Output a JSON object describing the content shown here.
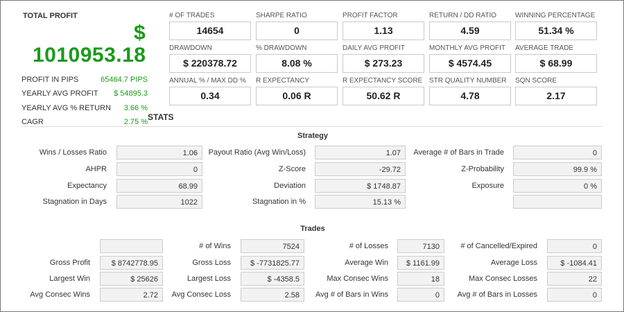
{
  "summary": {
    "title": "TOTAL PROFIT",
    "currency_symbol": "$",
    "total_profit": "1010953.18",
    "rows": [
      {
        "label": "PROFIT IN PIPS",
        "value": "65464.7 PIPS"
      },
      {
        "label": "YEARLY AVG PROFIT",
        "value": "$ 54895.3"
      },
      {
        "label": "YEARLY AVG % RETURN",
        "value": "3.66 %"
      },
      {
        "label": "CAGR",
        "value": "2.75 %"
      }
    ],
    "accent_color": "#1a9a1a"
  },
  "kpis": [
    {
      "label": "# OF TRADES",
      "value": "14654"
    },
    {
      "label": "SHARPE RATIO",
      "value": "0"
    },
    {
      "label": "PROFIT FACTOR",
      "value": "1.13"
    },
    {
      "label": "RETURN / DD RATIO",
      "value": "4.59"
    },
    {
      "label": "WINNING PERCENTAGE",
      "value": "51.34 %"
    },
    {
      "label": "DRAWDOWN",
      "value": "$ 220378.72"
    },
    {
      "label": "% DRAWDOWN",
      "value": "8.08 %"
    },
    {
      "label": "DAILY AVG PROFIT",
      "value": "$ 273.23"
    },
    {
      "label": "MONTHLY AVG PROFIT",
      "value": "$ 4574.45"
    },
    {
      "label": "AVERAGE TRADE",
      "value": "$ 68.99"
    },
    {
      "label": "ANNUAL % / MAX DD %",
      "value": "0.34"
    },
    {
      "label": "R EXPECTANCY",
      "value": "0.06 R"
    },
    {
      "label": "R EXPECTANCY SCORE",
      "value": "50.62 R"
    },
    {
      "label": "STR QUALITY NUMBER",
      "value": "4.78"
    },
    {
      "label": "SQN SCORE",
      "value": "2.17"
    }
  ],
  "stats_title": "STATS",
  "strategy": {
    "title": "Strategy",
    "rows": [
      [
        {
          "label": "Wins / Losses Ratio",
          "value": "1.06"
        },
        {
          "label": "Payout Ratio (Avg Win/Loss)",
          "value": "1.07"
        },
        {
          "label": "Average # of Bars in Trade",
          "value": "0"
        }
      ],
      [
        {
          "label": "AHPR",
          "value": "0"
        },
        {
          "label": "Z-Score",
          "value": "-29.72"
        },
        {
          "label": "Z-Probability",
          "value": "99.9 %"
        }
      ],
      [
        {
          "label": "Expectancy",
          "value": "68.99"
        },
        {
          "label": "Deviation",
          "value": "$ 1748.87"
        },
        {
          "label": "Exposure",
          "value": "0 %"
        }
      ],
      [
        {
          "label": "Stagnation in Days",
          "value": "1022"
        },
        {
          "label": "Stagnation in %",
          "value": "15.13 %"
        },
        {
          "label": "",
          "value": ""
        }
      ]
    ]
  },
  "trades": {
    "title": "Trades",
    "rows": [
      [
        {
          "label": "",
          "value": ""
        },
        {
          "label": "# of Wins",
          "value": "7524"
        },
        {
          "label": "# of Losses",
          "value": "7130"
        },
        {
          "label": "# of Cancelled/Expired",
          "value": "0"
        }
      ],
      [
        {
          "label": "Gross Profit",
          "value": "$ 8742778.95"
        },
        {
          "label": "Gross Loss",
          "value": "$ -7731825.77"
        },
        {
          "label": "Average Win",
          "value": "$ 1161.99"
        },
        {
          "label": "Average Loss",
          "value": "$ -1084.41"
        }
      ],
      [
        {
          "label": "Largest Win",
          "value": "$ 25626"
        },
        {
          "label": "Largest Loss",
          "value": "$ -4358.5"
        },
        {
          "label": "Max Consec Wins",
          "value": "18"
        },
        {
          "label": "Max Consec Losses",
          "value": "22"
        }
      ],
      [
        {
          "label": "Avg Consec Wins",
          "value": "2.72"
        },
        {
          "label": "Avg Consec Loss",
          "value": "2.58"
        },
        {
          "label": "Avg # of Bars in Wins",
          "value": "0"
        },
        {
          "label": "Avg # of Bars in Losses",
          "value": "0"
        }
      ]
    ]
  }
}
